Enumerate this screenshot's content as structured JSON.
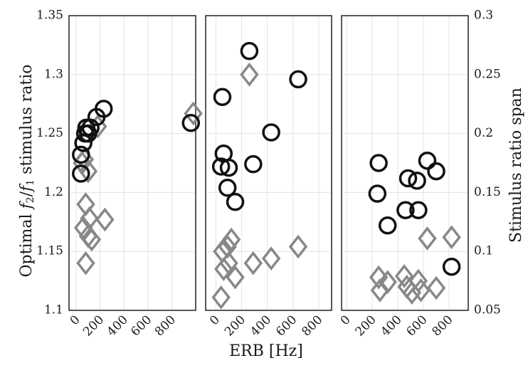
{
  "chart_data": {
    "type": "scatter",
    "ylabel_left": "Optimal f2/f1 stimulus ratio",
    "ylabel_right": "Stimulus ratio span",
    "xlabel": "ERB [Hz]",
    "ylim_left": [
      1.1,
      1.35
    ],
    "ylim_right": [
      0.05,
      0.3
    ],
    "yticks_left": [
      "1.1",
      "1.15",
      "1.2",
      "1.25",
      "1.3",
      "1.35"
    ],
    "yticks_right": [
      "0.05",
      "0.1",
      "0.15",
      "0.2",
      "0.25",
      "0.3"
    ],
    "grid": true,
    "colors": {
      "circle": "#111111",
      "diamond": "#888888"
    },
    "panels": [
      {
        "xlim": [
          -60,
          1000
        ],
        "xticks": [
          "0",
          "200",
          "400",
          "600",
          "800"
        ],
        "circles": [
          [
            40,
            1.216
          ],
          [
            40,
            1.232
          ],
          [
            60,
            1.242
          ],
          [
            75,
            1.25
          ],
          [
            85,
            1.255
          ],
          [
            100,
            1.25
          ],
          [
            120,
            1.255
          ],
          [
            170,
            1.264
          ],
          [
            230,
            1.271
          ],
          [
            960,
            1.259
          ]
        ],
        "diamonds": [
          [
            50,
            0.175
          ],
          [
            70,
            0.178
          ],
          [
            100,
            0.168
          ],
          [
            80,
            0.14
          ],
          [
            110,
            0.128
          ],
          [
            60,
            0.12
          ],
          [
            100,
            0.113
          ],
          [
            130,
            0.11
          ],
          [
            240,
            0.127
          ],
          [
            80,
            0.09
          ],
          [
            180,
            0.206
          ],
          [
            980,
            0.217
          ]
        ]
      },
      {
        "xlim": [
          -80,
          900
        ],
        "xticks": [
          "0",
          "200",
          "400",
          "600",
          "800"
        ],
        "circles": [
          [
            50,
            1.281
          ],
          [
            60,
            1.233
          ],
          [
            40,
            1.222
          ],
          [
            100,
            1.221
          ],
          [
            290,
            1.224
          ],
          [
            90,
            1.204
          ],
          [
            150,
            1.192
          ],
          [
            260,
            1.32
          ],
          [
            430,
            1.251
          ],
          [
            640,
            1.296
          ]
        ],
        "diamonds": [
          [
            260,
            0.25
          ],
          [
            50,
            0.1
          ],
          [
            90,
            0.104
          ],
          [
            120,
            0.11
          ],
          [
            60,
            0.085
          ],
          [
            100,
            0.09
          ],
          [
            150,
            0.078
          ],
          [
            290,
            0.09
          ],
          [
            430,
            0.094
          ],
          [
            640,
            0.104
          ],
          [
            40,
            0.061
          ]
        ]
      },
      {
        "xlim": [
          -40,
          950
        ],
        "xticks": [
          "0",
          "200",
          "400",
          "600",
          "800"
        ],
        "circles": [
          [
            250,
            1.225
          ],
          [
            240,
            1.199
          ],
          [
            320,
            1.172
          ],
          [
            460,
            1.185
          ],
          [
            480,
            1.212
          ],
          [
            550,
            1.21
          ],
          [
            560,
            1.185
          ],
          [
            630,
            1.227
          ],
          [
            700,
            1.218
          ],
          [
            820,
            1.137
          ]
        ],
        "diamonds": [
          [
            250,
            0.078
          ],
          [
            260,
            0.067
          ],
          [
            320,
            0.074
          ],
          [
            450,
            0.079
          ],
          [
            470,
            0.07
          ],
          [
            510,
            0.065
          ],
          [
            560,
            0.075
          ],
          [
            580,
            0.067
          ],
          [
            700,
            0.069
          ],
          [
            630,
            0.111
          ],
          [
            820,
            0.112
          ]
        ]
      }
    ]
  }
}
